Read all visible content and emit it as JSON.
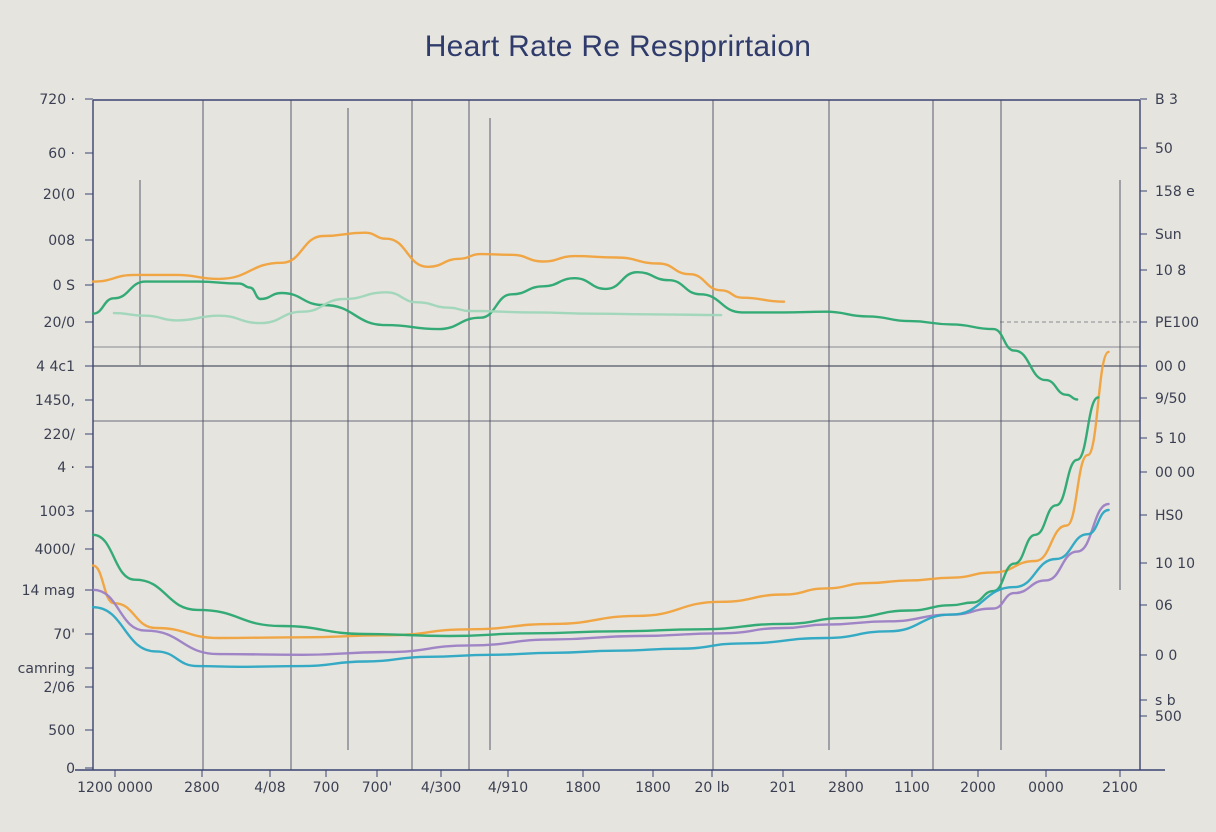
{
  "title": "Heart Rate Re Respprirtaion",
  "colors": {
    "background": "#e6e4df",
    "frame": "#3a4370",
    "grid": "#4a4f63",
    "orange": "#f0a23c",
    "green": "#2aa870",
    "light_green": "#9fd6b8",
    "purple": "#9b7fc4",
    "teal": "#2aa7c2"
  },
  "chart_data": [
    {
      "type": "line",
      "title": "Heart Rate Re Respprirtaion",
      "y_ticks_left": [
        "720 ·",
        "60 ·",
        "20(0",
        "008",
        "0 S",
        "20/0",
        "4 4c1",
        "1450,",
        "220/",
        "4 ·",
        "1003",
        "4000/",
        "14 mag",
        "70'",
        "camring",
        "2/06",
        "500",
        "0"
      ],
      "y_ticks_right": [
        "B 3",
        "50",
        "158 e",
        "Sun",
        "10 8",
        "PE100",
        "00 0",
        "9/50",
        "5 10",
        "00 00",
        "HS0",
        "10 10",
        "06",
        "0 0",
        "500",
        "s b"
      ],
      "x_ticks": [
        "1200 0000",
        "2800",
        "4/08",
        "700",
        "700'",
        "4/300",
        "4/910",
        "1800",
        "1800",
        "20 lb",
        "201",
        "2800",
        "1100",
        "2000",
        "0000",
        "2100"
      ],
      "xlim": [
        0,
        100
      ],
      "ylim": [
        0,
        100
      ],
      "series": [
        {
          "color": "orange",
          "x": [
            0,
            4,
            8,
            12,
            18,
            22,
            26,
            28,
            32,
            35,
            37,
            40,
            43,
            46,
            50,
            54,
            57,
            60,
            62,
            66
          ],
          "y": [
            72.9,
            73.9,
            73.9,
            73.3,
            75.7,
            79.7,
            80.2,
            79.3,
            75.1,
            76.3,
            77.0,
            76.9,
            75.9,
            76.7,
            76.5,
            75.6,
            74.0,
            71.6,
            70.5,
            69.9
          ]
        },
        {
          "color": "green",
          "x": [
            0,
            2,
            5,
            10,
            14,
            15,
            16,
            18,
            22,
            28,
            33,
            37,
            40,
            43,
            46,
            49,
            52,
            55,
            58,
            62,
            66,
            70,
            74,
            78,
            82,
            86,
            88,
            91,
            93,
            94
          ],
          "y": [
            68.1,
            70.4,
            72.9,
            72.9,
            72.6,
            72.0,
            70.3,
            71.2,
            69.4,
            66.4,
            65.8,
            67.5,
            71.0,
            72.2,
            73.4,
            71.8,
            74.3,
            73.1,
            71.0,
            68.3,
            68.3,
            68.4,
            67.7,
            67.0,
            66.5,
            65.8,
            62.6,
            58.2,
            56.0,
            55.3
          ]
        },
        {
          "color": "light_green",
          "x": [
            2,
            5,
            8,
            12,
            16,
            20,
            24,
            28,
            31,
            34,
            36,
            42,
            48,
            54,
            60
          ],
          "y": [
            68.2,
            67.8,
            67.1,
            67.8,
            66.7,
            68.4,
            70.3,
            71.3,
            69.8,
            69.0,
            68.5,
            68.3,
            68.1,
            68.0,
            67.9
          ]
        },
        {
          "color": "orange",
          "x": [
            0,
            2,
            6,
            12,
            20,
            28,
            36,
            44,
            52,
            60,
            66,
            70,
            74,
            78,
            82,
            86,
            90,
            93,
            95,
            97
          ],
          "y": [
            30.5,
            24.9,
            21.2,
            19.7,
            19.8,
            20.1,
            21.0,
            21.8,
            23.0,
            25.1,
            26.2,
            27.1,
            27.9,
            28.3,
            28.7,
            29.5,
            31.2,
            36.5,
            47.0,
            62.4
          ]
        },
        {
          "color": "green",
          "x": [
            0,
            4,
            10,
            18,
            26,
            34,
            42,
            50,
            58,
            66,
            72,
            78,
            82,
            84,
            86,
            88,
            90,
            92,
            94,
            96
          ],
          "y": [
            35.1,
            28.4,
            23.9,
            21.5,
            20.3,
            20.0,
            20.4,
            20.7,
            21.0,
            21.8,
            22.7,
            23.8,
            24.6,
            25.0,
            26.7,
            30.8,
            35.1,
            39.5,
            46.3,
            55.6
          ]
        },
        {
          "color": "purple",
          "x": [
            0,
            5,
            12,
            20,
            28,
            36,
            44,
            52,
            60,
            66,
            70,
            76,
            82,
            86,
            88,
            91,
            94,
            97
          ],
          "y": [
            26.9,
            20.8,
            17.3,
            17.2,
            17.6,
            18.6,
            19.5,
            20.0,
            20.4,
            21.2,
            21.7,
            22.2,
            23.2,
            24.1,
            26.4,
            28.3,
            32.6,
            39.7
          ]
        },
        {
          "color": "teal",
          "x": [
            0,
            6,
            10,
            14,
            20,
            26,
            32,
            38,
            44,
            50,
            56,
            62,
            70,
            76,
            82,
            88,
            92,
            95,
            97
          ],
          "y": [
            24.3,
            17.7,
            15.5,
            15.4,
            15.5,
            16.2,
            16.9,
            17.2,
            17.5,
            17.8,
            18.1,
            18.9,
            19.7,
            20.7,
            23.2,
            27.3,
            31.5,
            35.2,
            38.8
          ]
        }
      ],
      "grid": true,
      "legend": "none"
    }
  ]
}
